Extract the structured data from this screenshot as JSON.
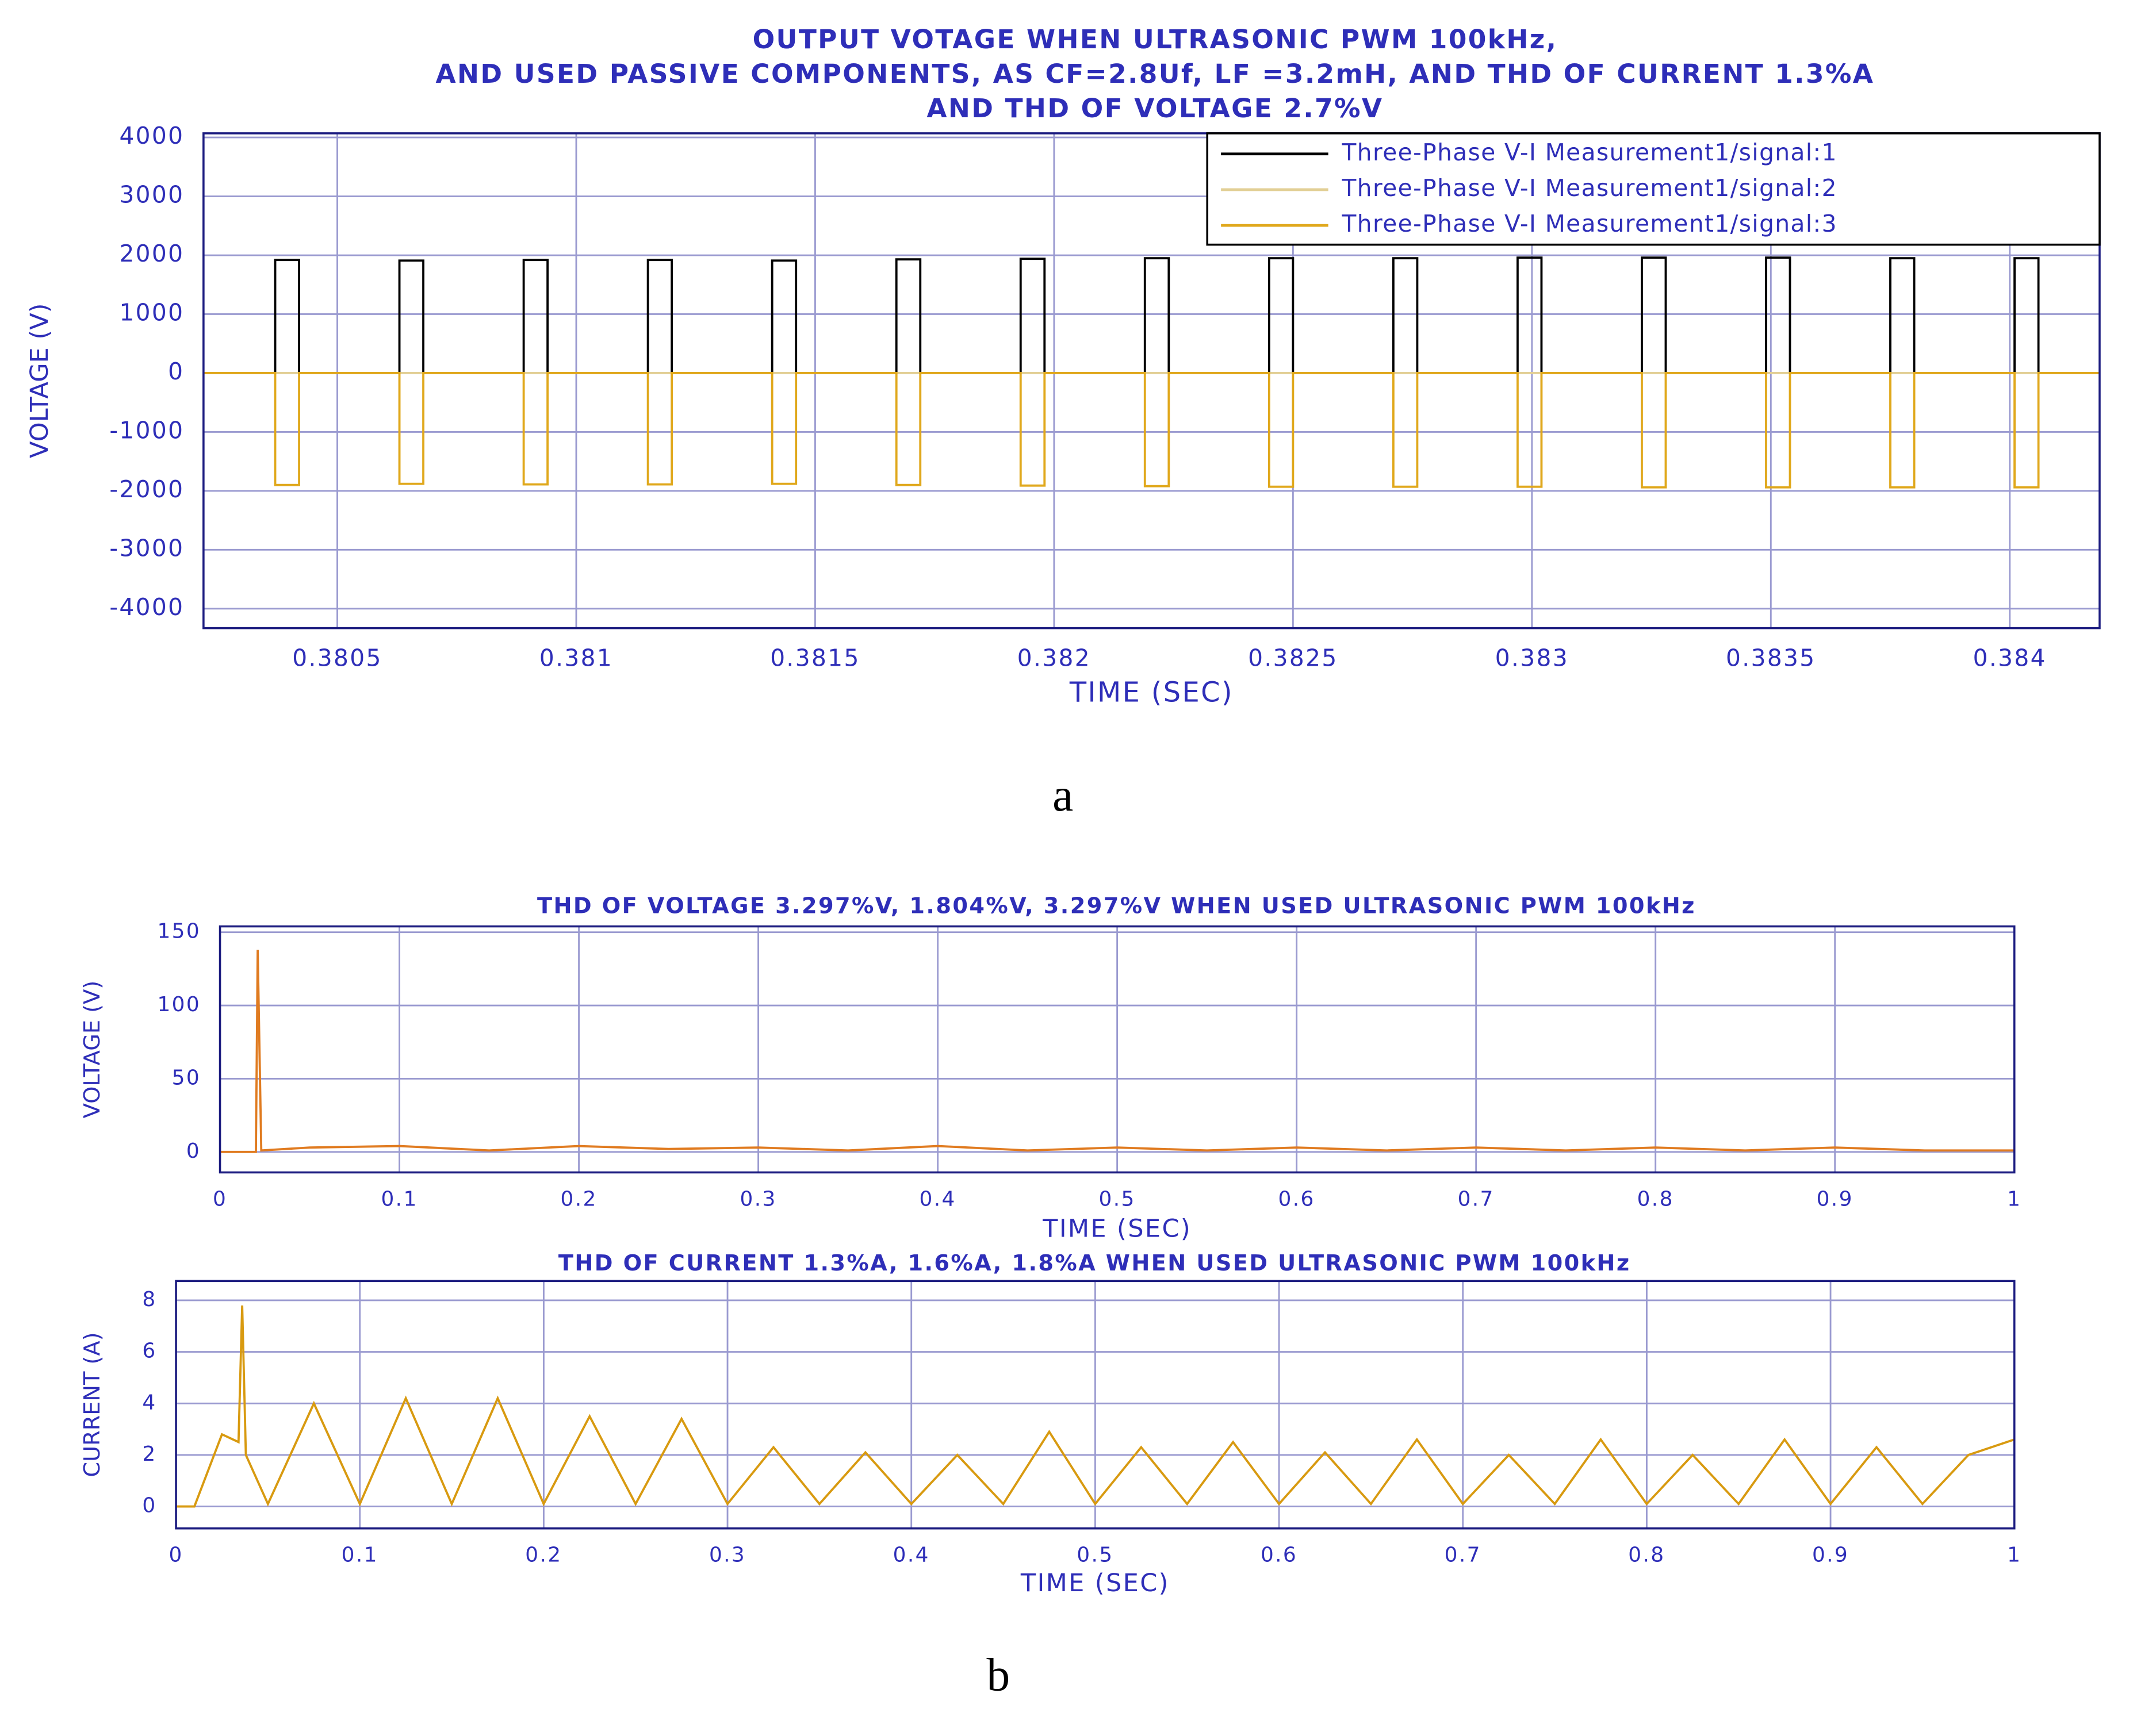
{
  "chart_data": [
    {
      "type": "line",
      "title": [
        "OUTPUT VOTAGE WHEN ULTRASONIC PWM 100kHz,",
        "AND USED PASSIVE COMPONENTS, AS CF=2.8Uf, LF =3.2mH, AND THD OF CURRENT 1.3%A",
        "AND THD OF VOLTAGE 2.7%V"
      ],
      "xlabel": "TIME (SEC)",
      "ylabel": "VOLTAGE (V)",
      "caption": "a",
      "xlim": [
        0.38022,
        0.384188
      ],
      "ylim": [
        -4330,
        4070
      ],
      "xticks": [
        0.3805,
        0.381,
        0.3815,
        0.382,
        0.3825,
        0.383,
        0.3835,
        0.384
      ],
      "yticks": [
        -4000,
        -3000,
        -2000,
        -1000,
        0,
        1000,
        2000,
        3000,
        4000
      ],
      "grid": true,
      "legend": "upper right",
      "x": [
        0.38022,
        0.38037,
        0.38037,
        0.38042,
        0.38042,
        0.38063,
        0.38063,
        0.38068,
        0.38068,
        0.38089,
        0.38089,
        0.38094,
        0.38094,
        0.38115,
        0.38115,
        0.3812,
        0.3812,
        0.38141,
        0.38141,
        0.38146,
        0.38146,
        0.38167,
        0.38167,
        0.38172,
        0.38172,
        0.38193,
        0.38193,
        0.38198,
        0.38198,
        0.38219,
        0.38219,
        0.38224,
        0.38224,
        0.38245,
        0.38245,
        0.3825,
        0.3825,
        0.38271,
        0.38271,
        0.38276,
        0.38276,
        0.38297,
        0.38297,
        0.38302,
        0.38302,
        0.38323,
        0.38323,
        0.38328,
        0.38328,
        0.38349,
        0.38349,
        0.38354,
        0.38354,
        0.38375,
        0.38375,
        0.3838,
        0.3838,
        0.38401,
        0.38401,
        0.38406,
        0.38406,
        0.384188
      ],
      "series": [
        {
          "name": "Three-Phase V-I Measurement1/signal:1",
          "color": "#000000",
          "values": [
            0,
            0,
            1920,
            1920,
            0,
            0,
            1910,
            1910,
            0,
            0,
            1920,
            1920,
            0,
            0,
            1920,
            1920,
            0,
            0,
            1910,
            1910,
            0,
            0,
            1930,
            1930,
            0,
            0,
            1940,
            1940,
            0,
            0,
            1950,
            1950,
            0,
            0,
            1950,
            1950,
            0,
            0,
            1950,
            1950,
            0,
            0,
            1960,
            1960,
            0,
            0,
            1960,
            1960,
            0,
            0,
            1960,
            1960,
            0,
            0,
            1950,
            1950,
            0,
            0,
            1950,
            1950,
            0,
            0
          ]
        },
        {
          "name": "Three-Phase V-I Measurement1/signal:2",
          "color": "#e2cf95",
          "values": [
            0,
            0,
            0,
            0,
            0,
            0,
            0,
            0,
            0,
            0,
            0,
            0,
            0,
            0,
            0,
            0,
            0,
            0,
            0,
            0,
            0,
            0,
            0,
            0,
            0,
            0,
            0,
            0,
            0,
            0,
            0,
            0,
            0,
            0,
            0,
            0,
            0,
            0,
            0,
            0,
            0,
            0,
            0,
            0,
            0,
            0,
            0,
            0,
            0,
            0,
            0,
            0,
            0,
            0,
            0,
            0,
            0,
            0,
            0,
            0,
            0,
            0
          ]
        },
        {
          "name": "Three-Phase V-I Measurement1/signal:3",
          "color": "#e0a81c",
          "values": [
            0,
            0,
            -1900,
            -1900,
            0,
            0,
            -1880,
            -1880,
            0,
            0,
            -1890,
            -1890,
            0,
            0,
            -1890,
            -1890,
            0,
            0,
            -1880,
            -1880,
            0,
            0,
            -1900,
            -1900,
            0,
            0,
            -1910,
            -1910,
            0,
            0,
            -1920,
            -1920,
            0,
            0,
            -1930,
            -1930,
            0,
            0,
            -1930,
            -1930,
            0,
            0,
            -1930,
            -1930,
            0,
            0,
            -1940,
            -1940,
            0,
            0,
            -1940,
            -1940,
            0,
            0,
            -1940,
            -1940,
            0,
            0,
            -1940,
            -1940,
            0,
            0
          ]
        }
      ]
    },
    {
      "type": "line",
      "title": "THD OF VOLTAGE 3.297%V, 1.804%V, 3.297%V WHEN USED ULTRASONIC PWM 100kHz",
      "xlabel": "TIME (SEC)",
      "ylabel": "VOLTAGE (V)",
      "xlim": [
        0,
        1
      ],
      "ylim": [
        -14,
        154
      ],
      "xticks": [
        0,
        0.1,
        0.2,
        0.3,
        0.4,
        0.5,
        0.6,
        0.7,
        0.8,
        0.9,
        1
      ],
      "yticks": [
        0,
        50,
        100,
        150
      ],
      "grid": true,
      "color": "#e07b20",
      "x": [
        0,
        0.02,
        0.021,
        0.023,
        0.05,
        0.1,
        0.15,
        0.2,
        0.25,
        0.3,
        0.35,
        0.4,
        0.45,
        0.5,
        0.55,
        0.6,
        0.65,
        0.7,
        0.75,
        0.8,
        0.85,
        0.9,
        0.95,
        1
      ],
      "values": [
        0,
        0,
        138,
        1,
        3,
        4,
        1,
        4,
        2,
        3,
        1,
        4,
        1,
        3,
        1,
        3,
        1,
        3,
        1,
        3,
        1,
        3,
        1,
        1
      ]
    },
    {
      "type": "line",
      "title": "THD OF CURRENT 1.3%A, 1.6%A, 1.8%A WHEN USED ULTRASONIC PWM 100kHz",
      "xlabel": "TIME (SEC)",
      "ylabel": "CURRENT (A)",
      "caption": "b",
      "xlim": [
        0,
        1
      ],
      "ylim": [
        -0.85,
        8.75
      ],
      "xticks": [
        0,
        0.1,
        0.2,
        0.3,
        0.4,
        0.5,
        0.6,
        0.7,
        0.8,
        0.9,
        1
      ],
      "yticks": [
        0,
        2,
        4,
        6,
        8
      ],
      "grid": true,
      "color": "#d89a10",
      "x": [
        0,
        0.01,
        0.025,
        0.034,
        0.036,
        0.038,
        0.05,
        0.075,
        0.1,
        0.125,
        0.15,
        0.175,
        0.2,
        0.225,
        0.25,
        0.275,
        0.3,
        0.325,
        0.35,
        0.375,
        0.4,
        0.425,
        0.45,
        0.475,
        0.5,
        0.525,
        0.55,
        0.575,
        0.6,
        0.625,
        0.65,
        0.675,
        0.7,
        0.725,
        0.75,
        0.775,
        0.8,
        0.825,
        0.85,
        0.875,
        0.9,
        0.925,
        0.95,
        0.975,
        1
      ],
      "values": [
        0,
        0,
        2.8,
        2.5,
        7.8,
        2.0,
        0.1,
        4.0,
        0.1,
        4.2,
        0.1,
        4.2,
        0.1,
        3.5,
        0.1,
        3.4,
        0.1,
        2.3,
        0.1,
        2.1,
        0.1,
        2.0,
        0.1,
        2.9,
        0.1,
        2.3,
        0.1,
        2.5,
        0.1,
        2.1,
        0.1,
        2.6,
        0.1,
        2.0,
        0.1,
        2.6,
        0.1,
        2.0,
        0.1,
        2.6,
        0.1,
        2.3,
        0.1,
        2.0,
        2.6
      ]
    }
  ]
}
